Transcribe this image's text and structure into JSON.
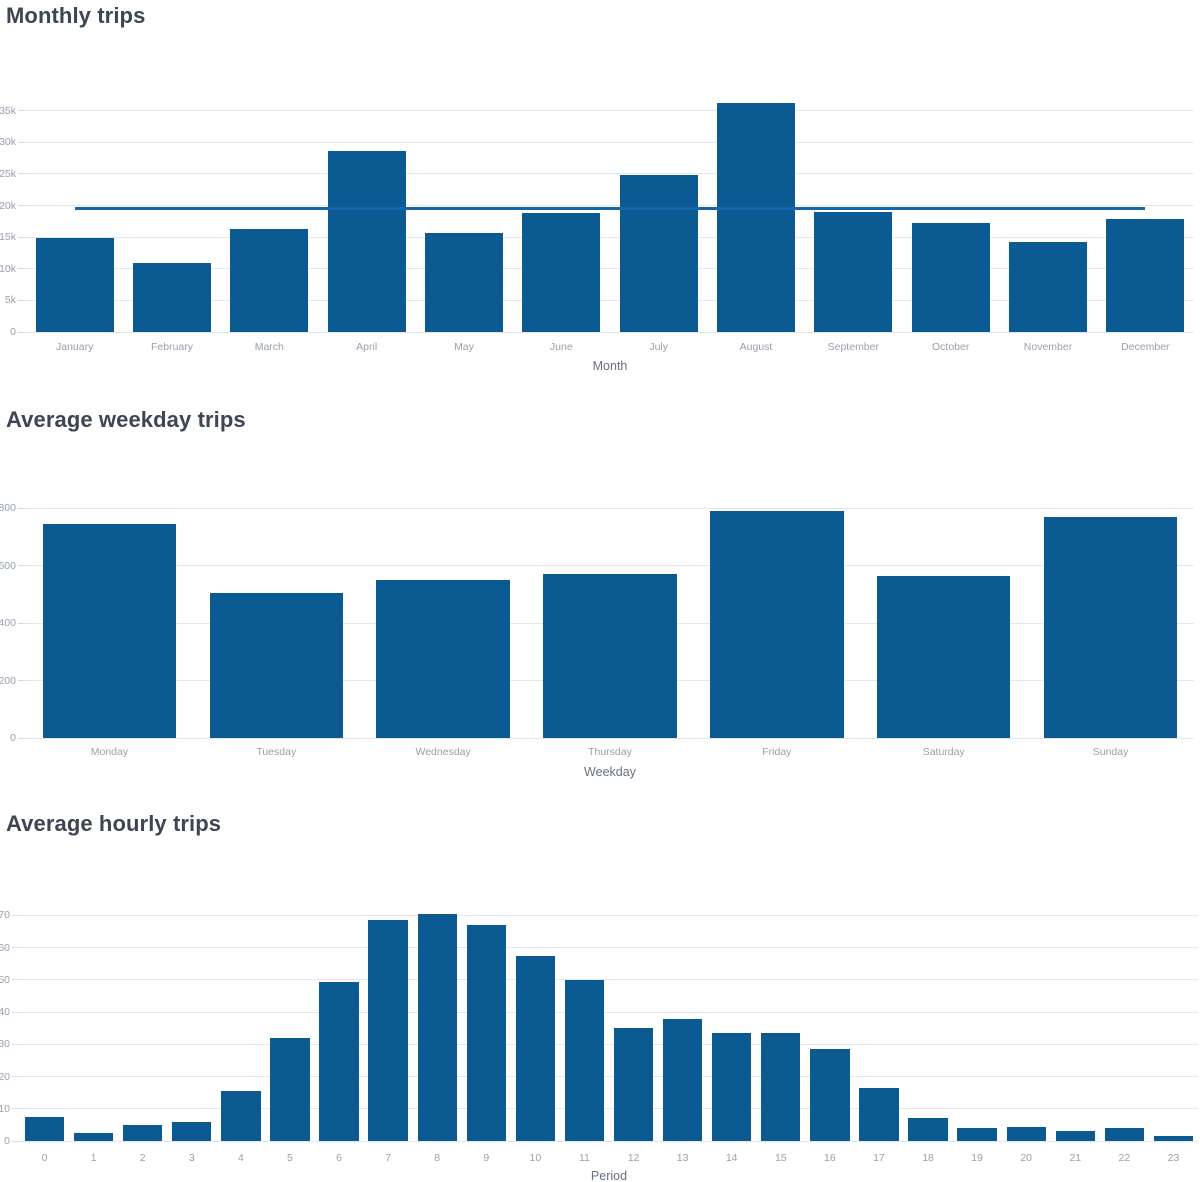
{
  "colors": {
    "bar": "#0c5a92",
    "average_line": "#1565a8",
    "grid": "#e2e6ef",
    "tick_mark": "#d9dde6",
    "tick_label": "#97a0ad",
    "axis_title": "#67707d",
    "chart_title": "#3d4654",
    "background": "#ffffff"
  },
  "chart_data": [
    {
      "type": "bar",
      "title": "Monthly trips",
      "categories": [
        "January",
        "February",
        "March",
        "April",
        "May",
        "June",
        "July",
        "August",
        "September",
        "October",
        "November",
        "December"
      ],
      "values": [
        14800,
        10900,
        16300,
        28600,
        15700,
        18800,
        24800,
        36200,
        19000,
        17200,
        14300,
        17900
      ],
      "average_line": 19500,
      "xlabel": "Month",
      "ylabel": "",
      "ytick_labels": [
        "0",
        "5k",
        "10k",
        "15k",
        "20k",
        "25k",
        "30k",
        "35k"
      ],
      "ytick_values": [
        0,
        5000,
        10000,
        15000,
        20000,
        25000,
        30000,
        35000
      ],
      "ylim": [
        0,
        43000
      ],
      "grid": "horizontal",
      "legend": "none"
    },
    {
      "type": "bar",
      "title": "Average weekday trips",
      "categories": [
        "Monday",
        "Tuesday",
        "Wednesday",
        "Thursday",
        "Friday",
        "Saturday",
        "Sunday"
      ],
      "values": [
        745,
        505,
        550,
        570,
        790,
        565,
        770
      ],
      "xlabel": "Weekday",
      "ylabel": "",
      "ytick_labels": [
        "0",
        "200",
        "400",
        "600",
        "800"
      ],
      "ytick_values": [
        0,
        200,
        400,
        600,
        800
      ],
      "ylim": [
        0,
        985
      ],
      "grid": "horizontal",
      "legend": "none"
    },
    {
      "type": "bar",
      "title": "Average hourly trips",
      "categories": [
        "0",
        "1",
        "2",
        "3",
        "4",
        "5",
        "6",
        "7",
        "8",
        "9",
        "10",
        "11",
        "12",
        "13",
        "14",
        "15",
        "16",
        "17",
        "18",
        "19",
        "20",
        "21",
        "22",
        "23"
      ],
      "values": [
        7.5,
        2.5,
        5,
        6,
        15.5,
        32,
        49.5,
        68.5,
        70.5,
        67,
        57.5,
        50,
        35,
        38,
        33.5,
        33.5,
        28.5,
        16.5,
        7,
        4,
        4.5,
        3,
        4,
        1.5
      ],
      "xlabel": "Period",
      "ylabel": "",
      "ytick_labels": [
        "0",
        "10",
        "20",
        "30",
        "40",
        "50",
        "60",
        "70"
      ],
      "ytick_values": [
        0,
        10,
        20,
        30,
        40,
        50,
        60,
        70
      ],
      "ylim": [
        0,
        90
      ],
      "grid": "horizontal",
      "legend": "none"
    }
  ]
}
